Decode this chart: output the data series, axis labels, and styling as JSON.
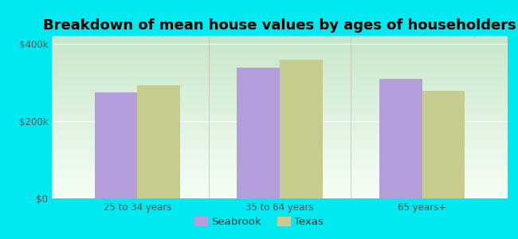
{
  "title": "Breakdown of mean house values by ages of householders",
  "categories": [
    "25 to 34 years",
    "35 to 64 years",
    "65 years+"
  ],
  "seabrook_values": [
    273000,
    338000,
    308000
  ],
  "texas_values": [
    292000,
    358000,
    278000
  ],
  "seabrook_color": "#b39ddb",
  "texas_color": "#c5cc8e",
  "background_outer": "#00e8f0",
  "gradient_top": "#c8e6c9",
  "gradient_bottom": "#f5fff5",
  "yticks": [
    0,
    200000,
    400000
  ],
  "ylabels": [
    "$0",
    "$200k",
    "$400k"
  ],
  "ylim": [
    0,
    420000
  ],
  "bar_width": 0.3,
  "legend_labels": [
    "Seabrook",
    "Texas"
  ],
  "title_fontsize": 13,
  "tick_fontsize": 8.5,
  "legend_fontsize": 9.5
}
